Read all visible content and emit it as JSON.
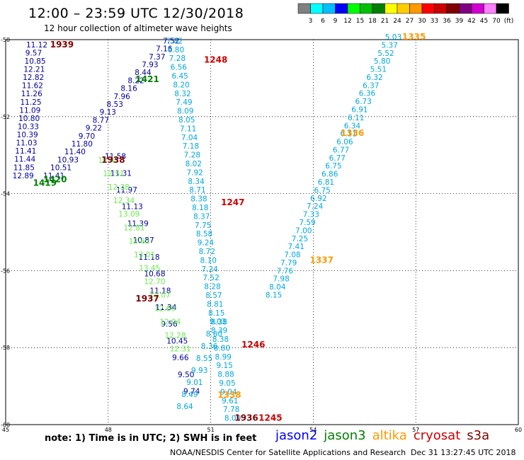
{
  "header": {
    "title": "12:00 – 23:59 UTC 12/30/2018",
    "subtitle": "12 hour collection of altimeter wave heights"
  },
  "colorbar": {
    "labels": [
      "3",
      "6",
      "9",
      "12",
      "15",
      "18",
      "21",
      "24",
      "27",
      "30",
      "33",
      "36",
      "39",
      "42",
      "45",
      "70",
      "(ft)"
    ],
    "colors": [
      "#808080",
      "#00ffff",
      "#00bfff",
      "#0000ff",
      "#00ff00",
      "#00c000",
      "#008000",
      "#ffff00",
      "#ffcc00",
      "#ff9900",
      "#ff0000",
      "#cc0000",
      "#800000",
      "#800080",
      "#d000d0",
      "#ff80ff",
      "#000000"
    ]
  },
  "map": {
    "lon_ticks": [
      "45",
      "48",
      "51",
      "54",
      "57",
      "60"
    ],
    "lat_ticks": [
      "-50",
      "-52",
      "-54",
      "-56",
      "-58",
      "-60"
    ]
  },
  "colors": {
    "jason2": "#0000a0",
    "jason3": "#008000",
    "jason3_light": "#66ee44",
    "altika": "#ff9900",
    "cryosat": "#cc0000",
    "s3a": "#800000",
    "blue": "#0000ff",
    "cyan": "#00a8e0"
  },
  "time_labels": [
    {
      "text": "1939",
      "c": "s3a",
      "lon": 46.3,
      "lat": -50.2
    },
    {
      "text": "1248",
      "c": "cryosat",
      "lon": 50.8,
      "lat": -50.6
    },
    {
      "text": "1335",
      "c": "altika",
      "lon": 56.6,
      "lat": -50.0
    },
    {
      "text": "1421",
      "c": "jason3",
      "lon": 48.8,
      "lat": -51.1
    },
    {
      "text": "1336",
      "c": "altika",
      "lon": 54.8,
      "lat": -52.5
    },
    {
      "text": "1938",
      "c": "s3a",
      "lon": 47.8,
      "lat": -53.2
    },
    {
      "text": "1420",
      "c": "jason3",
      "lon": 46.1,
      "lat": -53.7
    },
    {
      "text": "1419",
      "c": "jason3",
      "lon": 45.8,
      "lat": -53.8
    },
    {
      "text": "1247",
      "c": "cryosat",
      "lon": 51.3,
      "lat": -54.3
    },
    {
      "text": "1337",
      "c": "altika",
      "lon": 53.9,
      "lat": -55.8
    },
    {
      "text": "1937",
      "c": "s3a",
      "lon": 48.8,
      "lat": -56.8
    },
    {
      "text": "1246",
      "c": "cryosat",
      "lon": 51.9,
      "lat": -58.0
    },
    {
      "text": "1338",
      "c": "altika",
      "lon": 51.2,
      "lat": -59.3
    },
    {
      "text": "1936",
      "c": "s3a",
      "lon": 51.7,
      "lat": -59.9
    },
    {
      "text": "1245",
      "c": "cryosat",
      "lon": 52.4,
      "lat": -59.9
    }
  ],
  "tracks": [
    {
      "c": "jason2",
      "lon0": 45.6,
      "lat0": -50.2,
      "lon1": 45.2,
      "lat1": -53.6,
      "values": [
        "11.12",
        "9.57",
        "10.85",
        "12.21",
        "12.82",
        "11.62",
        "11.26",
        "11.25",
        "11.09",
        "10.80",
        "10.33",
        "10.39",
        "11.03",
        "11.41",
        "11.44",
        "11.85",
        "12.89"
      ]
    },
    {
      "c": "jason2",
      "lon0": 46.1,
      "lat0": -53.6,
      "lon1": 49.6,
      "lat1": -50.1,
      "values": [
        "11.41",
        "10.51",
        "10.93",
        "11.40",
        "11.80",
        "9.70",
        "9.22",
        "8.77",
        "9.13",
        "8.53",
        "7.96",
        "8.16",
        "8.22",
        "8.44",
        "7.93",
        "7.37",
        "7.16",
        "7.52"
      ]
    },
    {
      "c": "cyan",
      "lon0": 49.7,
      "lat0": -50.1,
      "lon1": 51.4,
      "lat1": -59.9,
      "values": [
        "7.82",
        "6.80",
        "7.28",
        "6.56",
        "6.45",
        "8.20",
        "8.32",
        "7.49",
        "8.09",
        "8.05",
        "7.11",
        "7.04",
        "7.18",
        "7.28",
        "8.02",
        "7.92",
        "8.34",
        "8.71",
        "8.38",
        "8.18",
        "8.37",
        "7.75",
        "8.58",
        "9.24",
        "8.72",
        "8.10",
        "7.24",
        "7.52",
        "8.28",
        "8.57",
        "8.81",
        "8.15",
        "9.03",
        "8.39",
        "8.38",
        "8.80",
        "8.99",
        "9.15",
        "8.88",
        "9.05",
        "9.04",
        "9.61",
        "7.78",
        "8.09"
      ]
    },
    {
      "c": "cyan",
      "lon0": 56.1,
      "lat0": -50.0,
      "lon1": 52.6,
      "lat1": -56.7,
      "values": [
        "5.03",
        "5.37",
        "5.52",
        "5.80",
        "5.51",
        "6.32",
        "6.37",
        "6.36",
        "6.73",
        "6.91",
        "6.11",
        "6.34",
        "6.11",
        "6.06",
        "6.77",
        "6.77",
        "6.75",
        "6.86",
        "6.81",
        "6.75",
        "6.92",
        "7.24",
        "7.33",
        "7.59",
        "7.00",
        "7.25",
        "7.41",
        "7.08",
        "7.79",
        "7.76",
        "7.98",
        "8.04",
        "8.15"
      ]
    },
    {
      "c": "jason2",
      "lon0": 47.9,
      "lat0": -53.1,
      "lon1": 50.2,
      "lat1": -59.2,
      "values": [
        "11.58",
        "11.31",
        "11.97",
        "11.13",
        "11.39",
        "10.87",
        "11.18",
        "10.68",
        "11.18",
        "11.34",
        "9.56",
        "10.45",
        "9.66",
        "9.50",
        "9.74"
      ]
    },
    {
      "c": "jason3_light",
      "lon0": 47.7,
      "lat0": -53.2,
      "lon1": 49.8,
      "lat1": -58.1,
      "values": [
        "12.47",
        "12.51",
        "12.38",
        "12.34",
        "13.09",
        "12.81",
        "12.62",
        "13.01",
        "13.45",
        "12.70",
        "13.07",
        "12.60",
        "12.04",
        "12.28",
        "12.31"
      ]
    },
    {
      "c": "cyan",
      "lon0": 50.0,
      "lat0": -59.6,
      "lon1": 51.0,
      "lat1": -57.4,
      "values": [
        "8.64",
        "8.49",
        "9.01",
        "9.93",
        "8.55",
        "8.36",
        "8.60",
        "8.38"
      ]
    }
  ],
  "footer": {
    "note": "note:  1) Time is in UTC;  2) SWH is in feet",
    "legend": [
      {
        "label": "jason2",
        "c": "blue"
      },
      {
        "label": "jason3",
        "c": "jason3"
      },
      {
        "label": "altika",
        "c": "altika"
      },
      {
        "label": "cryosat",
        "c": "cryosat"
      },
      {
        "label": "s3a",
        "c": "s3a"
      }
    ],
    "credit": "NOAA/NESDIS Center for Satellite Applications and Research",
    "timestamp": "Dec 31 13:27:45 UTC 2018"
  }
}
